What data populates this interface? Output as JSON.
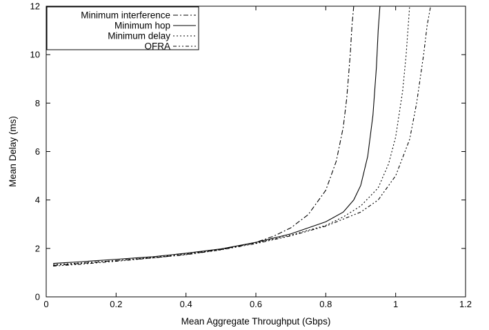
{
  "chart_data": {
    "type": "line",
    "xlabel": "Mean Aggregate Throughput (Gbps)",
    "ylabel": "Mean Delay (ms)",
    "xlim": [
      0,
      1.2
    ],
    "ylim": [
      0,
      12
    ],
    "x_ticks": [
      "0",
      "0.2",
      "0.4",
      "0.6",
      "0.8",
      "1",
      "1.2"
    ],
    "y_ticks": [
      "0",
      "2",
      "4",
      "6",
      "8",
      "10",
      "12"
    ],
    "grid": false,
    "legend_position": "top-left",
    "series": [
      {
        "name": "Minimum interference",
        "style": "dash-dot",
        "color": "#000000",
        "x": [
          0.02,
          0.1,
          0.2,
          0.3,
          0.4,
          0.5,
          0.6,
          0.65,
          0.7,
          0.75,
          0.8,
          0.83,
          0.85,
          0.86,
          0.87,
          0.875,
          0.88
        ],
        "y": [
          1.3,
          1.38,
          1.5,
          1.6,
          1.75,
          1.95,
          2.25,
          2.5,
          2.85,
          3.4,
          4.4,
          5.6,
          7.0,
          8.2,
          10.0,
          11.2,
          12.0
        ]
      },
      {
        "name": "Minimum hop",
        "style": "solid",
        "color": "#000000",
        "x": [
          0.02,
          0.1,
          0.2,
          0.3,
          0.4,
          0.5,
          0.6,
          0.7,
          0.8,
          0.85,
          0.88,
          0.9,
          0.92,
          0.935,
          0.945,
          0.95,
          0.955
        ],
        "y": [
          1.38,
          1.45,
          1.55,
          1.65,
          1.8,
          1.98,
          2.25,
          2.6,
          3.1,
          3.5,
          4.0,
          4.6,
          5.8,
          7.5,
          9.5,
          11.0,
          12.0
        ]
      },
      {
        "name": "Minimum delay",
        "style": "dotted",
        "color": "#000000",
        "x": [
          0.02,
          0.1,
          0.2,
          0.3,
          0.4,
          0.5,
          0.6,
          0.7,
          0.8,
          0.85,
          0.9,
          0.95,
          0.98,
          1.0,
          1.02,
          1.03,
          1.04
        ],
        "y": [
          1.33,
          1.4,
          1.5,
          1.62,
          1.77,
          1.96,
          2.22,
          2.55,
          2.95,
          3.3,
          3.75,
          4.5,
          5.5,
          6.6,
          8.5,
          10.0,
          12.0
        ]
      },
      {
        "name": "OFRA",
        "style": "dash-dot-dot",
        "color": "#000000",
        "x": [
          0.02,
          0.1,
          0.2,
          0.3,
          0.4,
          0.5,
          0.6,
          0.7,
          0.8,
          0.9,
          0.95,
          1.0,
          1.04,
          1.06,
          1.08,
          1.09,
          1.1
        ],
        "y": [
          1.27,
          1.35,
          1.47,
          1.6,
          1.74,
          1.94,
          2.2,
          2.52,
          2.92,
          3.5,
          4.0,
          5.0,
          6.5,
          8.0,
          10.0,
          11.2,
          12.0
        ]
      }
    ]
  }
}
